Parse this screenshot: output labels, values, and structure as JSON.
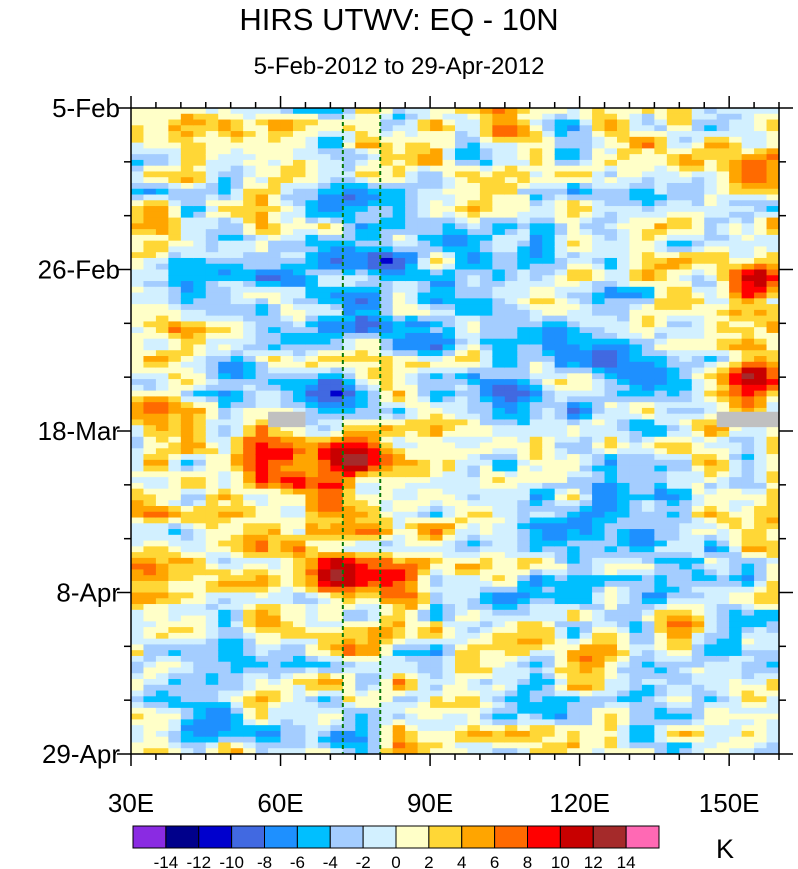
{
  "chart_data": {
    "type": "heatmap",
    "title": "HIRS UTWV: EQ - 10N",
    "subtitle": "5-Feb-2012 to 29-Apr-2012",
    "x_axis": {
      "range": [
        30,
        160
      ],
      "tick_values": [
        30,
        60,
        90,
        120,
        150
      ],
      "tick_labels": [
        "30E",
        "60E",
        "90E",
        "120E",
        "150E"
      ],
      "minor_step": 5
    },
    "y_axis": {
      "range_days": [
        0,
        84
      ],
      "tick_values": [
        0,
        21,
        42,
        63,
        84
      ],
      "tick_labels": [
        "5-Feb",
        "26-Feb",
        "18-Mar",
        "8-Apr",
        "29-Apr"
      ],
      "minor_step_days": 7
    },
    "reference_lines_lon": [
      72.5,
      80
    ],
    "missing_data_regions": [
      {
        "lon": [
          57.5,
          65
        ],
        "day": [
          39.5,
          41.5
        ]
      },
      {
        "lon": [
          147.5,
          160
        ],
        "day": [
          39.5,
          41.5
        ]
      }
    ],
    "colorbar": {
      "units": "K",
      "levels": [
        -14,
        -12,
        -10,
        -8,
        -6,
        -4,
        -2,
        0,
        2,
        4,
        6,
        8,
        10,
        12,
        14
      ],
      "level_labels": [
        "-14",
        "-12",
        "-10",
        "-8",
        "-6",
        "-4",
        "-2",
        "0",
        "2",
        "4",
        "6",
        "8",
        "10",
        "12",
        "14"
      ],
      "colors": [
        "#8a2be2",
        "#00008b",
        "#0000cd",
        "#4169e1",
        "#1e90ff",
        "#00bfff",
        "#a4cdff",
        "#d2f0ff",
        "#ffffc8",
        "#ffd736",
        "#ffa500",
        "#ff6a00",
        "#ff0000",
        "#c80000",
        "#a52a2a",
        "#ff69b4"
      ]
    },
    "anomaly_features": [
      {
        "lon": 75,
        "day": 12,
        "value": -9
      },
      {
        "lon": 80,
        "day": 20,
        "value": -11
      },
      {
        "lon": 70,
        "day": 37,
        "value": -12
      },
      {
        "lon": 50,
        "day": 34,
        "value": -9
      },
      {
        "lon": 115,
        "day": 30,
        "value": -9
      },
      {
        "lon": 125,
        "day": 32,
        "value": -10
      },
      {
        "lon": 135,
        "day": 35,
        "value": -8
      },
      {
        "lon": 105,
        "day": 37,
        "value": -10
      },
      {
        "lon": 45,
        "day": 80,
        "value": -9
      },
      {
        "lon": 72,
        "day": 82,
        "value": -9
      },
      {
        "lon": 72,
        "day": 45,
        "value": 12
      },
      {
        "lon": 75,
        "day": 46,
        "value": 14
      },
      {
        "lon": 60,
        "day": 45,
        "value": 10
      },
      {
        "lon": 72,
        "day": 61,
        "value": 14
      },
      {
        "lon": 83,
        "day": 61,
        "value": 10
      },
      {
        "lon": 35,
        "day": 39,
        "value": 10
      },
      {
        "lon": 155,
        "day": 22,
        "value": 14
      },
      {
        "lon": 155,
        "day": 35,
        "value": 14
      },
      {
        "lon": 155,
        "day": 9,
        "value": 10
      },
      {
        "lon": 33,
        "day": 60,
        "value": 8
      },
      {
        "lon": 105,
        "day": 3,
        "value": 8
      },
      {
        "lon": 122,
        "day": 71,
        "value": 8
      },
      {
        "lon": 140,
        "day": 67,
        "value": 8
      }
    ]
  }
}
